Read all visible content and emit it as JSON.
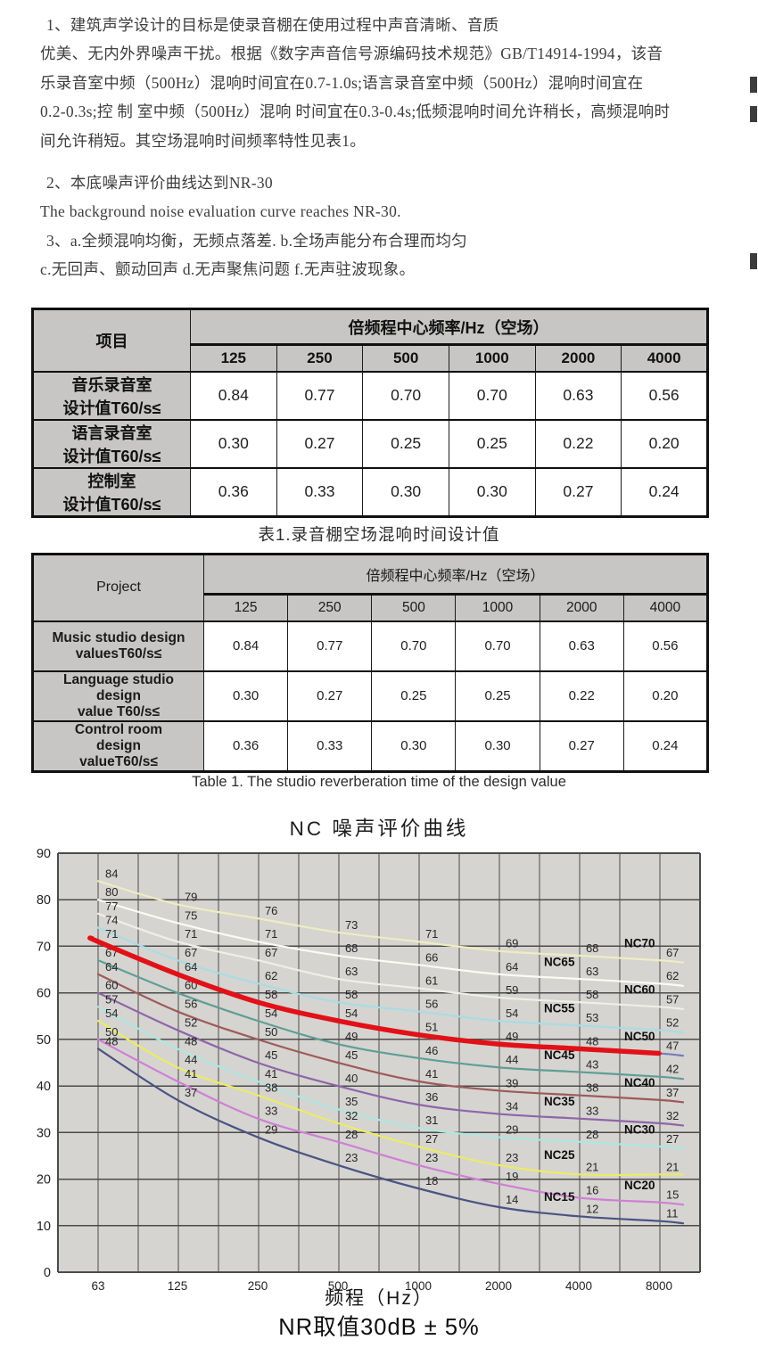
{
  "intro": {
    "lines": [
      {
        "text": "1、建筑声学设计的目标是使录音棚在使用过程中声音清晰、音质",
        "num": true
      },
      {
        "text": "优美、无内外界噪声干扰。根据《数字声音信号源编码技术规范》GB/T14914-1994，该音"
      },
      {
        "text": "乐录音室中频（500Hz）混响时间宜在0.7-1.0s;语言录音室中频（500Hz）混响时间宜在"
      },
      {
        "text": "0.2-0.3s;控 制 室中频（500Hz）混响 时间宜在0.3-0.4s;低频混响时间允许稍长，高频混响时"
      },
      {
        "text": "间允许稍短。其空场混响时间频率特性见表1。"
      },
      {
        "text": "2、本底噪声评价曲线达到NR-30",
        "num": true,
        "gap": true
      },
      {
        "text": "The background noise evaluation curve reaches NR-30."
      },
      {
        "text": "3、a.全频混响均衡，无频点落差. b.全场声能分布合理而均匀",
        "num": true
      },
      {
        "text": "c.无回声、颤动回声 d.无声聚焦问题 f.无声驻波现象。"
      }
    ]
  },
  "tables": {
    "cn": {
      "corner": "项目",
      "band_header": "倍频程中心频率/Hz（空场）",
      "freqs": [
        "125",
        "250",
        "500",
        "1000",
        "2000",
        "4000"
      ],
      "rows": [
        {
          "label": [
            "音乐录音室",
            "设计值T60/s≤"
          ],
          "values": [
            "0.84",
            "0.77",
            "0.70",
            "0.70",
            "0.63",
            "0.56"
          ]
        },
        {
          "label": [
            "语言录音室",
            "设计值T60/s≤"
          ],
          "values": [
            "0.30",
            "0.27",
            "0.25",
            "0.25",
            "0.22",
            "0.20"
          ]
        },
        {
          "label": [
            "控制室",
            "设计值T60/s≤"
          ],
          "values": [
            "0.36",
            "0.33",
            "0.30",
            "0.30",
            "0.27",
            "0.24"
          ]
        }
      ],
      "caption": "表1.录音棚空场混响时间设计值"
    },
    "en": {
      "corner": "Project",
      "band_header": "倍频程中心频率/Hz（空场）",
      "freqs": [
        "125",
        "250",
        "500",
        "1000",
        "2000",
        "4000"
      ],
      "rows": [
        {
          "label": [
            "Music studio design",
            "valuesT60/s≤"
          ],
          "values": [
            "0.84",
            "0.77",
            "0.70",
            "0.70",
            "0.63",
            "0.56"
          ]
        },
        {
          "label": [
            "Language studio",
            "design",
            "value T60/s≤"
          ],
          "values": [
            "0.30",
            "0.27",
            "0.25",
            "0.25",
            "0.22",
            "0.20"
          ]
        },
        {
          "label": [
            "Control room",
            "design",
            "valueT60/s≤"
          ],
          "values": [
            "0.36",
            "0.33",
            "0.30",
            "0.30",
            "0.27",
            "0.24"
          ]
        }
      ],
      "caption": "Table 1.  The studio reverberation time of the design value"
    }
  },
  "chart_data": {
    "type": "line",
    "title": "NC 噪声评价曲线",
    "xlabel": "频程（Hz）",
    "footnote": "NR取值30dB ± 5%",
    "x_ticks": [
      63,
      125,
      250,
      500,
      1000,
      2000,
      4000,
      8000
    ],
    "ylim": [
      0,
      90
    ],
    "ytick_step": 10,
    "grid": "half-octave verticals, 10 dB horizontals",
    "plot_bg": "#d5d4d1",
    "grid_color": "#4b4b4b",
    "highlight_series": "NC50",
    "highlight_color": "#e21118",
    "series": [
      {
        "name": "NC70",
        "color": "#efecc2",
        "label_col": "right",
        "values": [
          84,
          79,
          76,
          73,
          71,
          69,
          68,
          67
        ]
      },
      {
        "name": "NC65",
        "color": "#fbfbf5",
        "label_col": "mid",
        "values": [
          80,
          75,
          71,
          68,
          66,
          64,
          63,
          62
        ]
      },
      {
        "name": "NC60",
        "color": "#eef0e4",
        "label_col": "right",
        "values": [
          77,
          71,
          67,
          63,
          61,
          59,
          58,
          57
        ]
      },
      {
        "name": "NC55",
        "color": "#a9dce2",
        "label_col": "mid",
        "values": [
          74,
          67,
          62,
          58,
          56,
          54,
          53,
          52
        ]
      },
      {
        "name": "NC50",
        "color": "#7a7ab8",
        "label_col": "right",
        "values": [
          71,
          64,
          58,
          54,
          51,
          49,
          48,
          47
        ],
        "highlight": true
      },
      {
        "name": "NC45",
        "color": "#5f9e96",
        "label_col": "mid",
        "values": [
          67,
          60,
          54,
          49,
          46,
          44,
          43,
          42
        ]
      },
      {
        "name": "NC40",
        "color": "#9e5a5a",
        "label_col": "right",
        "values": [
          64,
          56,
          50,
          45,
          41,
          39,
          38,
          37
        ]
      },
      {
        "name": "NC35",
        "color": "#8f65a8",
        "label_col": "mid",
        "values": [
          60,
          52,
          45,
          40,
          36,
          34,
          33,
          32
        ]
      },
      {
        "name": "NC30",
        "color": "#b0e6e0",
        "label_col": "right",
        "values": [
          57,
          48,
          41,
          35,
          31,
          29,
          28,
          27
        ]
      },
      {
        "name": "NC25",
        "color": "#ecea68",
        "label_col": "mid",
        "values": [
          54,
          44,
          38,
          32,
          27,
          23,
          21,
          21
        ]
      },
      {
        "name": "NC20",
        "color": "#cf7fd4",
        "label_col": "right",
        "values": [
          50,
          41,
          33,
          28,
          23,
          19,
          16,
          15
        ]
      },
      {
        "name": "NC15",
        "color": "#4a5382",
        "label_col": "mid",
        "values": [
          48,
          37,
          29,
          23,
          18,
          14,
          12,
          11
        ]
      }
    ]
  }
}
